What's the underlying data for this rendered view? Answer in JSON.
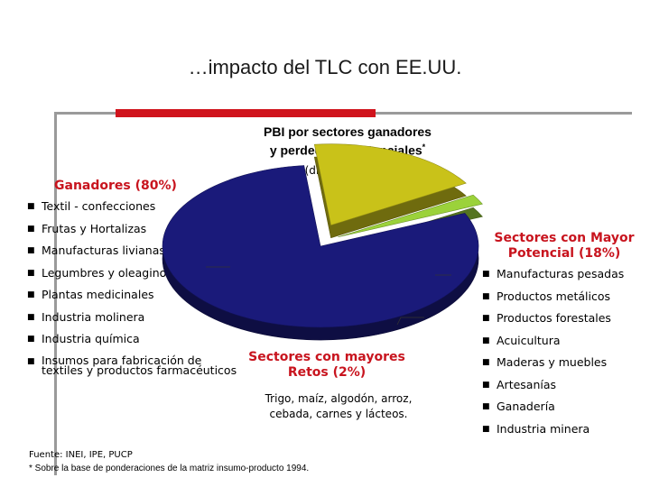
{
  "slide": {
    "title": "…impacto del TLC con EE.UU."
  },
  "chart_data": {
    "type": "pie",
    "title_line1": "PBI por sectores ganadores",
    "title_line2": "y perdedores potenciales",
    "title_mark": "*",
    "subtitle": "(distribución %)",
    "slices": [
      {
        "label": "Ganadores (80%)",
        "value": 80,
        "color": "#1a1a7a"
      },
      {
        "label": "Sectores con Mayor Potencial (18%)",
        "value": 18,
        "color": "#c9c219"
      },
      {
        "label": "Sectores con mayores Retos (2%)",
        "value": 2,
        "color": "#9bd23a"
      }
    ]
  },
  "winners": {
    "heading": "Ganadores (80%)",
    "items": [
      "Textil - confecciones",
      "Frutas y Hortalizas",
      "Manufacturas livianas",
      "Legumbres y oleaginosas",
      "Plantas medicinales",
      "Industria molinera",
      "Industria química",
      "Insumos para fabricación de textiles y productos farmacéuticos"
    ]
  },
  "potential": {
    "heading": "Sectores con Mayor Potencial (18%)",
    "items": [
      "Manufacturas pesadas",
      "Productos metálicos",
      "Productos forestales",
      "Acuicultura",
      "Maderas y muebles",
      "Artesanías",
      "Ganadería",
      "Industria minera"
    ]
  },
  "challenges": {
    "heading": "Sectores con mayores Retos (2%)",
    "description": "Trigo, maíz, algodón, arroz, cebada, carnes y lácteos."
  },
  "footnote": {
    "line1": "Fuente: INEI, IPE, PUCP",
    "line2": "* Sobre la base de ponderaciones de la matriz insumo-producto 1994."
  },
  "bullet_glyph": "■",
  "colors": {
    "accent_red": "#d0131c",
    "heading_red": "#c8141e",
    "rule_gray": "#9a9a9a"
  }
}
